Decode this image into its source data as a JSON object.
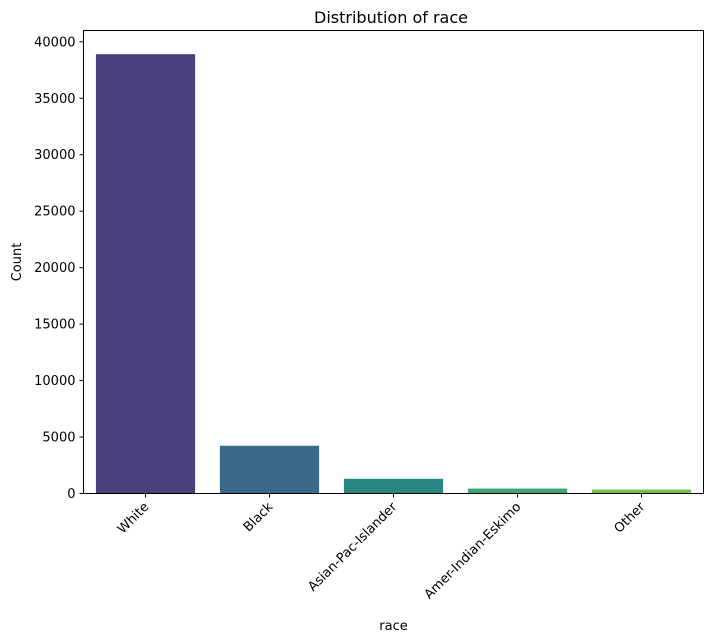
{
  "chart_data": {
    "type": "bar",
    "title": "Distribution of race",
    "xlabel": "race",
    "ylabel": "Count",
    "categories": [
      "White",
      "Black",
      "Asian-Pac-Islander",
      "Amer-Indian-Eskimo",
      "Other"
    ],
    "values": [
      38903,
      4228,
      1303,
      435,
      353
    ],
    "colors": [
      "#48407b",
      "#3b6988",
      "#26877f",
      "#3ca672",
      "#76c244"
    ],
    "ylim": [
      0,
      41000
    ],
    "yticks": [
      0,
      5000,
      10000,
      15000,
      20000,
      25000,
      30000,
      35000,
      40000
    ],
    "ytick_labels": [
      "0",
      "5000",
      "10000",
      "15000",
      "20000",
      "25000",
      "30000",
      "35000",
      "40000"
    ],
    "grid": false,
    "legend": "none"
  }
}
